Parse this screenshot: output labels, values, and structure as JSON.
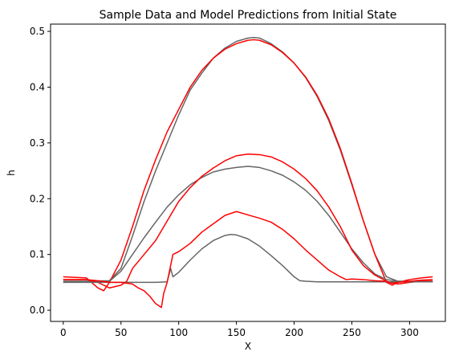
{
  "chart_data": {
    "type": "line",
    "title": "Sample Data and Model Predictions from Initial State",
    "xlabel": "X",
    "ylabel": "h",
    "xlim": [
      -11,
      331
    ],
    "ylim": [
      -0.02,
      0.513
    ],
    "xticks": [
      0,
      50,
      100,
      150,
      200,
      250,
      300
    ],
    "yticks": [
      0.0,
      0.1,
      0.2,
      0.3,
      0.4,
      0.5
    ],
    "ytick_labels": [
      "0.0",
      "0.1",
      "0.2",
      "0.3",
      "0.4",
      "0.5"
    ],
    "grid": false,
    "legend": "none",
    "colors": {
      "data": "#666666",
      "model": "#ff0000"
    },
    "series": [
      {
        "color": "#666666",
        "x": [
          0,
          20,
          40,
          50,
          60,
          70,
          80,
          90,
          100,
          110,
          120,
          130,
          140,
          150,
          160,
          165,
          170,
          180,
          190,
          200,
          210,
          220,
          230,
          240,
          250,
          260,
          270,
          280,
          290,
          300,
          310,
          320
        ],
        "y": [
          0.052,
          0.052,
          0.053,
          0.075,
          0.133,
          0.195,
          0.25,
          0.3,
          0.35,
          0.395,
          0.425,
          0.452,
          0.47,
          0.482,
          0.488,
          0.489,
          0.488,
          0.478,
          0.463,
          0.443,
          0.417,
          0.383,
          0.34,
          0.287,
          0.225,
          0.16,
          0.1,
          0.06,
          0.052,
          0.052,
          0.052,
          0.052
        ]
      },
      {
        "color": "#ff0000",
        "x": [
          0,
          20,
          30,
          35,
          40,
          50,
          60,
          70,
          80,
          90,
          100,
          110,
          120,
          130,
          140,
          150,
          160,
          165,
          170,
          180,
          190,
          200,
          210,
          220,
          230,
          240,
          250,
          260,
          270,
          280,
          285,
          290,
          300,
          310,
          320
        ],
        "y": [
          0.06,
          0.058,
          0.04,
          0.035,
          0.05,
          0.09,
          0.15,
          0.215,
          0.27,
          0.32,
          0.36,
          0.4,
          0.43,
          0.452,
          0.468,
          0.478,
          0.484,
          0.485,
          0.484,
          0.476,
          0.462,
          0.443,
          0.418,
          0.385,
          0.343,
          0.29,
          0.227,
          0.16,
          0.1,
          0.05,
          0.045,
          0.05,
          0.055,
          0.058,
          0.06
        ]
      },
      {
        "color": "#666666",
        "x": [
          0,
          20,
          40,
          50,
          60,
          70,
          80,
          90,
          100,
          110,
          120,
          130,
          140,
          150,
          160,
          170,
          180,
          190,
          200,
          210,
          220,
          230,
          240,
          250,
          260,
          270,
          280,
          290,
          300,
          310,
          320
        ],
        "y": [
          0.05,
          0.051,
          0.052,
          0.07,
          0.1,
          0.13,
          0.158,
          0.185,
          0.207,
          0.225,
          0.238,
          0.248,
          0.253,
          0.256,
          0.258,
          0.256,
          0.25,
          0.242,
          0.23,
          0.215,
          0.195,
          0.17,
          0.14,
          0.11,
          0.085,
          0.065,
          0.055,
          0.052,
          0.051,
          0.051,
          0.051
        ]
      },
      {
        "color": "#ff0000",
        "x": [
          0,
          20,
          30,
          40,
          50,
          55,
          60,
          70,
          80,
          90,
          100,
          110,
          120,
          130,
          140,
          150,
          160,
          170,
          180,
          190,
          200,
          210,
          220,
          230,
          240,
          250,
          260,
          270,
          280,
          290,
          300,
          310,
          320
        ],
        "y": [
          0.055,
          0.055,
          0.05,
          0.04,
          0.045,
          0.052,
          0.075,
          0.1,
          0.125,
          0.16,
          0.195,
          0.22,
          0.24,
          0.255,
          0.268,
          0.277,
          0.28,
          0.279,
          0.275,
          0.266,
          0.253,
          0.236,
          0.214,
          0.185,
          0.15,
          0.108,
          0.08,
          0.063,
          0.052,
          0.047,
          0.05,
          0.052,
          0.052
        ]
      },
      {
        "color": "#666666",
        "x": [
          0,
          20,
          40,
          60,
          80,
          90,
          93,
          95,
          100,
          110,
          120,
          130,
          140,
          145,
          150,
          160,
          170,
          180,
          190,
          200,
          205,
          210,
          220,
          240,
          260,
          280,
          300,
          320
        ],
        "y": [
          0.05,
          0.05,
          0.05,
          0.05,
          0.05,
          0.051,
          0.075,
          0.06,
          0.068,
          0.09,
          0.11,
          0.125,
          0.134,
          0.136,
          0.135,
          0.128,
          0.115,
          0.098,
          0.08,
          0.06,
          0.053,
          0.052,
          0.051,
          0.051,
          0.051,
          0.051,
          0.051,
          0.051
        ]
      },
      {
        "color": "#ff0000",
        "x": [
          0,
          20,
          30,
          40,
          50,
          60,
          65,
          70,
          75,
          80,
          85,
          87,
          90,
          93,
          95,
          100,
          110,
          120,
          130,
          140,
          150,
          160,
          170,
          180,
          190,
          200,
          210,
          220,
          230,
          240,
          245,
          250,
          260,
          270,
          280,
          285,
          290,
          300,
          310,
          320
        ],
        "y": [
          0.055,
          0.055,
          0.053,
          0.05,
          0.05,
          0.047,
          0.04,
          0.035,
          0.025,
          0.012,
          0.005,
          0.03,
          0.05,
          0.08,
          0.1,
          0.105,
          0.12,
          0.14,
          0.155,
          0.17,
          0.177,
          0.171,
          0.165,
          0.158,
          0.145,
          0.128,
          0.108,
          0.09,
          0.072,
          0.06,
          0.055,
          0.056,
          0.055,
          0.053,
          0.052,
          0.048,
          0.05,
          0.052,
          0.054,
          0.055
        ]
      }
    ]
  }
}
